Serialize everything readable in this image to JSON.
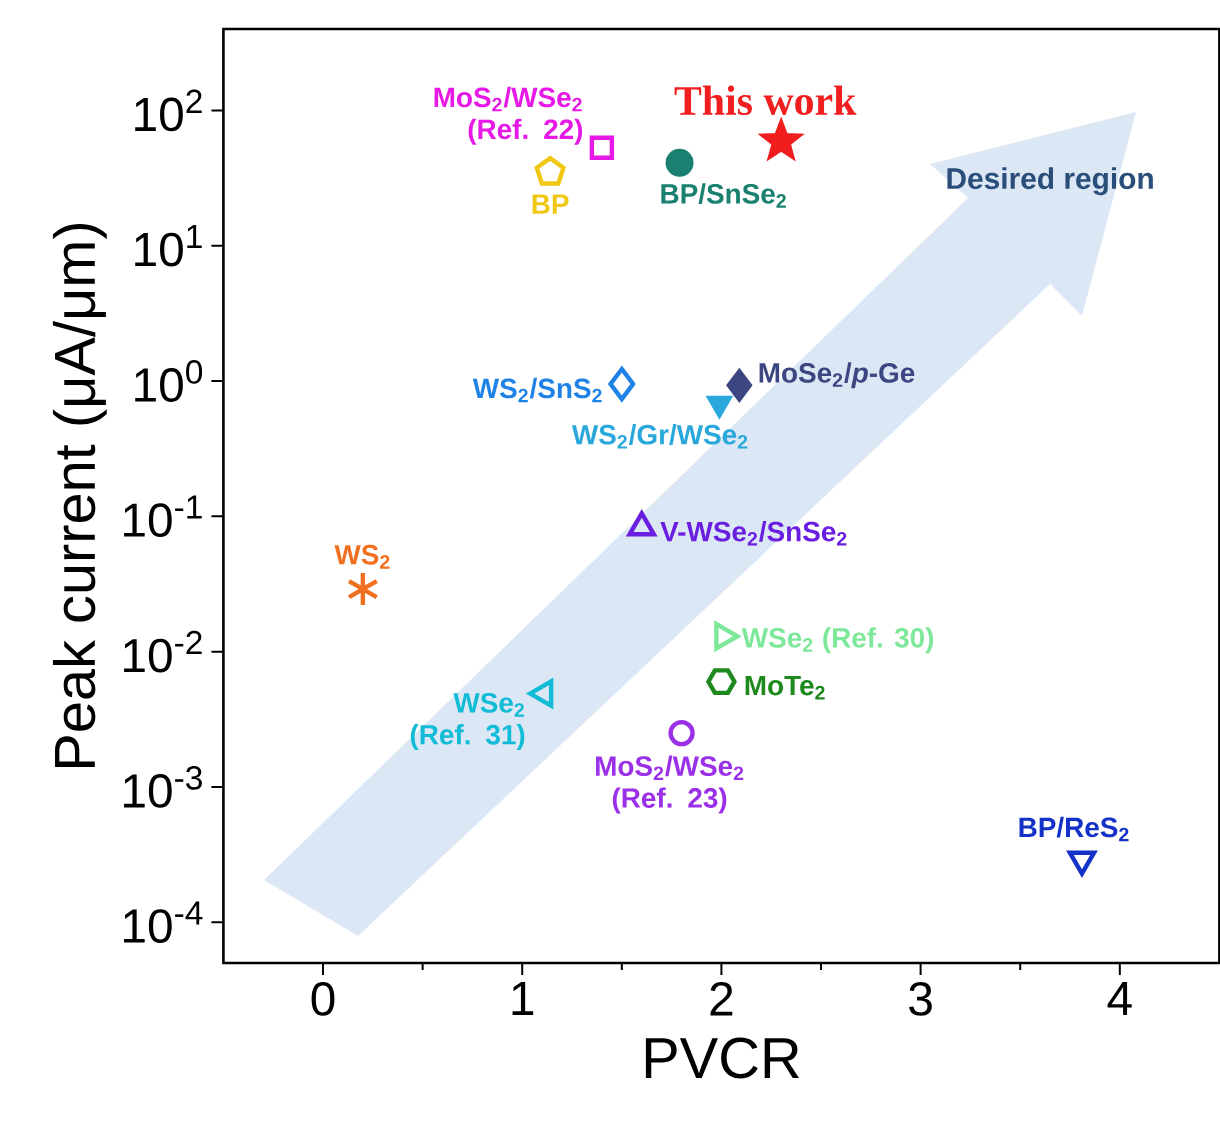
{
  "chart_data": {
    "type": "scatter",
    "xlabel": "PVCR",
    "ylabel": "Peak current (μA/μm)",
    "log": "y",
    "grid": false,
    "legend": false,
    "xlim": [
      -0.5,
      4.5
    ],
    "ylim": [
      5e-05,
      400
    ],
    "xticks": [
      0,
      1,
      2,
      3,
      4
    ],
    "yticks": [
      {
        "value": 0.0001,
        "label": "10$^{-4}$"
      },
      {
        "value": 0.001,
        "label": "10$^{-3}$"
      },
      {
        "value": 0.01,
        "label": "10$^{-2}$"
      },
      {
        "value": 0.1,
        "label": "10$^{-1}$"
      },
      {
        "value": 1,
        "label": "10$^{0}$"
      },
      {
        "value": 10,
        "label": "10$^{1}$"
      },
      {
        "value": 100,
        "label": "10$^{2}$"
      }
    ],
    "annotations": [
      "Desired region"
    ],
    "series": [
      {
        "name": "This work",
        "color": "#f01e1e",
        "marker": "star",
        "x": [
          2.3
        ],
        "values": [
          59
        ]
      },
      {
        "name": "BP/SnSe$_{2}$",
        "color": "#1a8070",
        "marker": "circle",
        "x": [
          1.79
        ],
        "values": [
          41
        ]
      },
      {
        "name": "MoS$_{2}$/WSe$_{2}$ (Ref. 22)",
        "color": "#e619e6",
        "marker": "square",
        "x": [
          1.4
        ],
        "values": [
          53
        ]
      },
      {
        "name": "BP",
        "color": "#f0c814",
        "x": [
          1.14
        ],
        "values": [
          35
        ]
      },
      {
        "name": "WS$_{2}$/SnS$_{2}$",
        "color": "#1e82e6",
        "marker": "diamond",
        "x": [
          1.5
        ],
        "values": [
          0.95
        ]
      },
      {
        "name": "WS$_{2}$/Gr/WSe$_{2}$",
        "color": "#2aa8dc",
        "marker": "triangle",
        "x": [
          1.99
        ],
        "values": [
          0.68
        ]
      },
      {
        "name": "MoSe$_{2}$/*p*-Ge",
        "color": "#3c4680",
        "marker": "diamond",
        "x": [
          2.09
        ],
        "values": [
          0.93
        ]
      },
      {
        "name": "V-WSe$_{2}$/SnSe$_{2}$",
        "color": "#6a1ee0",
        "marker": "triangle",
        "x": [
          1.6
        ],
        "values": [
          0.083
        ]
      },
      {
        "name": "WS$_{2}$",
        "color": "#f07020",
        "marker": "cross",
        "x": [
          0.2
        ],
        "values": [
          0.029
        ]
      },
      {
        "name": "WSe$_{2}$ (Ref. 30)",
        "color": "#7ee89a",
        "marker": "triangle",
        "x": [
          2.01
        ],
        "values": [
          0.013
        ]
      },
      {
        "name": "MoTe$_{2}$",
        "color": "#1e8a1e",
        "x": [
          2.0
        ],
        "values": [
          0.006
        ]
      },
      {
        "name": "WSe$_{2}$ (Ref. 31)",
        "color": "#12bcd6",
        "marker": "triangle",
        "x": [
          1.11
        ],
        "values": [
          0.0049
        ]
      },
      {
        "name": "MoS$_{2}$/WSe$_{2}$ (Ref. 23)",
        "color": "#9a30e8",
        "marker": "circle",
        "x": [
          1.8
        ],
        "values": [
          0.0025
        ]
      },
      {
        "name": "BP/ReS$_{2}$",
        "color": "#1432c8",
        "marker": "triangle",
        "x": [
          3.81
        ],
        "values": [
          0.00029
        ]
      }
    ]
  }
}
